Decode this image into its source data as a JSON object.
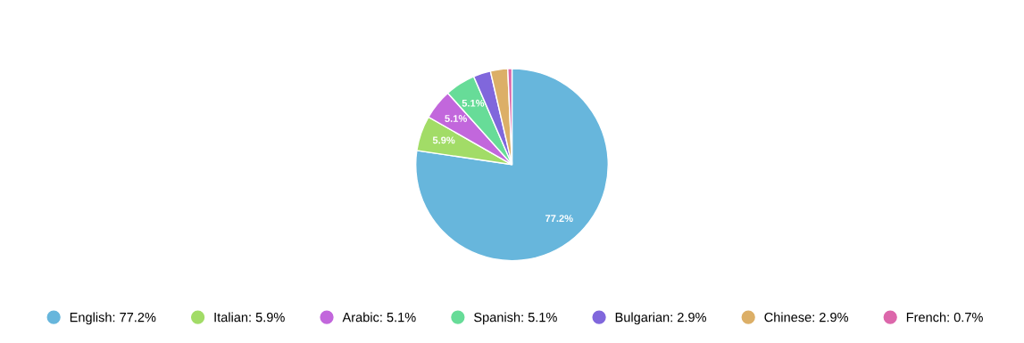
{
  "chart_data": {
    "type": "pie",
    "categories": [
      "English",
      "Italian",
      "Arabic",
      "Spanish",
      "Bulgarian",
      "Chinese",
      "French"
    ],
    "values": [
      77.2,
      5.9,
      5.1,
      5.1,
      2.9,
      2.9,
      0.7
    ],
    "colors": [
      "#67b6dc",
      "#a2dc67",
      "#c267dc",
      "#67dc98",
      "#8067dc",
      "#dcaf67",
      "#dc67ab"
    ],
    "value_labels": [
      "77.2%",
      "5.9%",
      "5.1%",
      "5.1%",
      "2.9%",
      "2.9%",
      "0.7%"
    ],
    "legend": "bottom"
  }
}
